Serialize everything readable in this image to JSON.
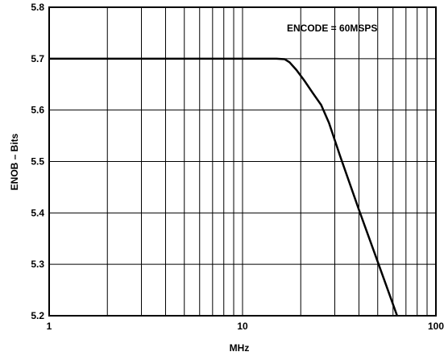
{
  "chart_data": {
    "type": "line",
    "title": "",
    "annotation": "ENCODE = 60MSPS",
    "xlabel": "MHz",
    "ylabel": "ENOB – Bits",
    "xscale": "log",
    "xlim": [
      1,
      100
    ],
    "ylim": [
      5.2,
      5.8
    ],
    "grid": true,
    "xticks": [
      {
        "value": 1,
        "label": "1"
      },
      {
        "value": 10,
        "label": "10"
      },
      {
        "value": 100,
        "label": "100"
      }
    ],
    "yticks": [
      {
        "value": 5.2,
        "label": "5.2"
      },
      {
        "value": 5.3,
        "label": "5.3"
      },
      {
        "value": 5.4,
        "label": "5.4"
      },
      {
        "value": 5.5,
        "label": "5.5"
      },
      {
        "value": 5.6,
        "label": "5.6"
      },
      {
        "value": 5.7,
        "label": "5.7"
      },
      {
        "value": 5.8,
        "label": "5.8"
      }
    ],
    "series": [
      {
        "color": "#000000",
        "x": [
          1,
          5,
          10,
          15,
          16.5,
          17.5,
          19,
          21,
          23,
          25.5,
          28,
          32,
          40,
          50,
          63
        ],
        "y": [
          5.7,
          5.7,
          5.7,
          5.7,
          5.699,
          5.693,
          5.678,
          5.656,
          5.634,
          5.61,
          5.575,
          5.51,
          5.406,
          5.305,
          5.2
        ]
      }
    ]
  }
}
